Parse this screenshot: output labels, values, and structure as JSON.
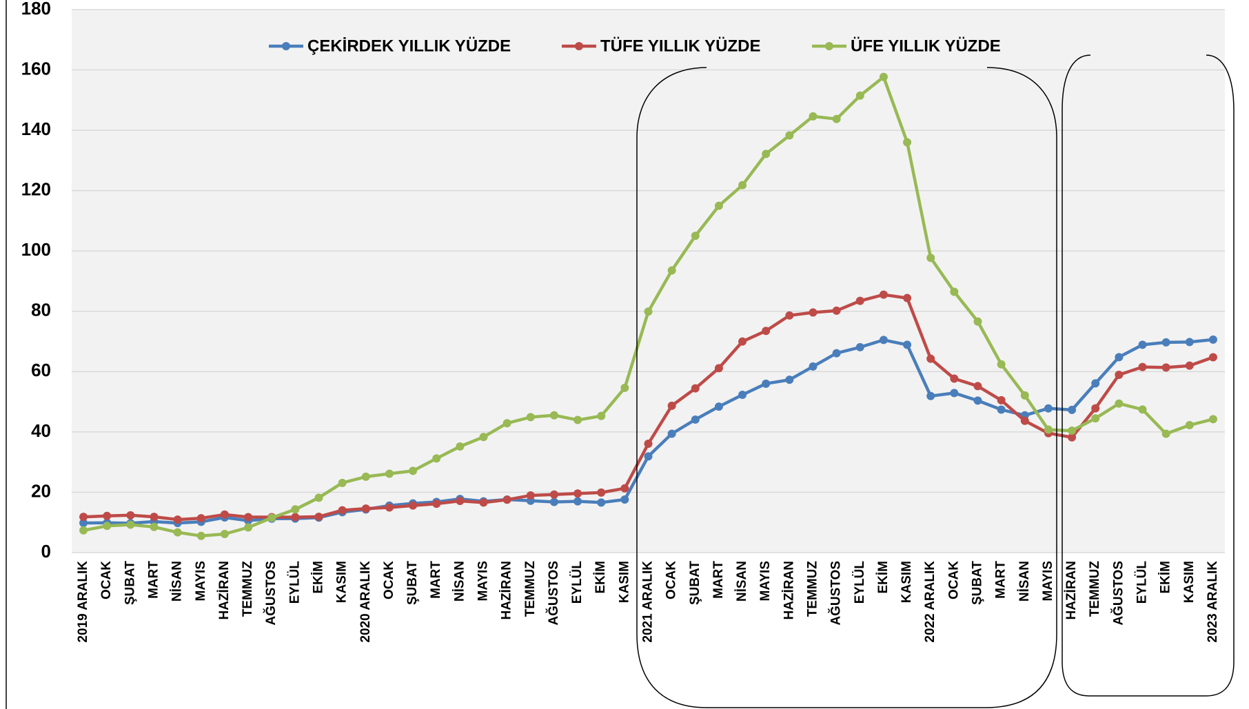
{
  "chart_data": {
    "type": "line",
    "categories": [
      "2019 ARALIK",
      "OCAK",
      "ŞUBAT",
      "MART",
      "NİSAN",
      "MAYIS",
      "HAZİRAN",
      "TEMMUZ",
      "AĞUSTOS",
      "EYLÜL",
      "EKİM",
      "KASIM",
      "2020 ARALIK",
      "OCAK",
      "ŞUBAT",
      "MART",
      "NİSAN",
      "MAYIS",
      "HAZİRAN",
      "TEMMUZ",
      "AĞUSTOS",
      "EYLÜL",
      "EKİM",
      "KASIM",
      "2021 ARALIK",
      "OCAK",
      "ŞUBAT",
      "MART",
      "NİSAN",
      "MAYIS",
      "HAZİRAN",
      "TEMMUZ",
      "AĞUSTOS",
      "EYLÜL",
      "EKİM",
      "KASIM",
      "2022 ARALIK",
      "OCAK",
      "ŞUBAT",
      "MART",
      "NİSAN",
      "MAYIS",
      "HAZİRAN",
      "TEMMUZ",
      "AĞUSTOS",
      "EYLÜL",
      "EKİM",
      "KASIM",
      "2023 ARALIK"
    ],
    "series": [
      {
        "name": "ÇEKİRDEK YILLIK YÜZDE",
        "color": "#4a7ebb",
        "values": [
          9.81,
          9.88,
          9.74,
          10.27,
          9.8,
          10.2,
          11.64,
          10.61,
          11.26,
          11.28,
          11.6,
          13.4,
          14.3,
          15.6,
          16.3,
          16.8,
          17.8,
          17.0,
          17.6,
          17.2,
          16.8,
          17.0,
          16.6,
          17.6,
          31.9,
          39.4,
          44.1,
          48.4,
          52.3,
          56.0,
          57.3,
          61.7,
          66.1,
          68.1,
          70.5,
          68.9,
          51.9,
          52.9,
          50.4,
          47.4,
          45.5,
          47.8,
          47.3,
          56.1,
          64.8,
          68.9,
          69.7,
          69.8,
          70.6
        ]
      },
      {
        "name": "TÜFE YILLIK YÜZDE",
        "color": "#be4b48",
        "values": [
          11.84,
          12.15,
          12.37,
          11.86,
          10.94,
          11.39,
          12.62,
          11.76,
          11.77,
          11.75,
          11.89,
          14.03,
          14.6,
          14.97,
          15.61,
          16.19,
          17.14,
          16.59,
          17.53,
          18.95,
          19.25,
          19.58,
          19.89,
          21.31,
          36.08,
          48.69,
          54.44,
          61.14,
          69.97,
          73.5,
          78.62,
          79.6,
          80.21,
          83.45,
          85.51,
          84.39,
          64.27,
          57.68,
          55.18,
          50.51,
          43.68,
          39.59,
          38.21,
          47.83,
          58.94,
          61.53,
          61.36,
          61.98,
          64.77
        ]
      },
      {
        "name": "ÜFE YILLIK YÜZDE",
        "color": "#98b954",
        "values": [
          7.36,
          8.84,
          9.26,
          8.5,
          6.71,
          5.53,
          6.17,
          8.33,
          11.53,
          14.33,
          18.2,
          23.11,
          25.15,
          26.16,
          27.09,
          31.2,
          35.17,
          38.33,
          42.89,
          44.92,
          45.52,
          43.96,
          45.3,
          54.62,
          79.89,
          93.53,
          105.01,
          114.97,
          121.82,
          132.16,
          138.31,
          144.61,
          143.75,
          151.5,
          157.69,
          136.02,
          97.72,
          86.46,
          76.61,
          62.43,
          52.11,
          40.76,
          40.42,
          44.5,
          49.41,
          47.44,
          39.39,
          42.25,
          44.22
        ]
      }
    ],
    "ylim": [
      0,
      180
    ],
    "yticks": [
      0,
      20,
      40,
      60,
      80,
      100,
      120,
      140,
      160,
      180
    ],
    "grid": true
  }
}
